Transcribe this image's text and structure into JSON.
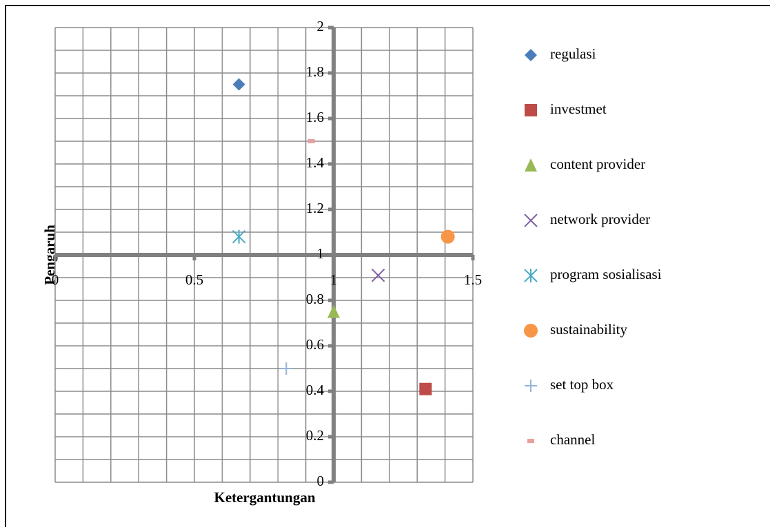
{
  "chart_data": {
    "type": "scatter",
    "xlabel": "Ketergantungan",
    "ylabel": "Pengaruh",
    "xlim": [
      0,
      1.5
    ],
    "ylim": [
      0,
      2
    ],
    "xticks": [
      0,
      0.5,
      1,
      1.5
    ],
    "yticks": [
      0,
      0.2,
      0.4,
      0.6,
      0.8,
      1,
      1.2,
      1.4,
      1.6,
      1.8,
      2
    ],
    "xminorticks": [
      0.1,
      0.2,
      0.3,
      0.4,
      0.6,
      0.7,
      0.8,
      0.9,
      1.1,
      1.2,
      1.3,
      1.4
    ],
    "yminorticks": [
      0.1,
      0.3,
      0.5,
      0.7,
      0.9,
      1.1,
      1.3,
      1.5,
      1.7,
      1.9
    ],
    "axis_cross": [
      1,
      1
    ],
    "grid": true,
    "legend": "right",
    "series": [
      {
        "name": "regulasi",
        "color": "#4a7ebb",
        "marker": "diamond",
        "x": [
          0.66
        ],
        "values": [
          1.75
        ]
      },
      {
        "name": "investmet",
        "color": "#be4b48",
        "marker": "square",
        "x": [
          1.33
        ],
        "values": [
          0.41
        ]
      },
      {
        "name": "content provider",
        "color": "#98b954",
        "marker": "triangle",
        "x": [
          1.0
        ],
        "values": [
          0.75
        ]
      },
      {
        "name": "network provider",
        "color": "#7d60a0",
        "marker": "x",
        "x": [
          1.16
        ],
        "values": [
          0.91
        ]
      },
      {
        "name": "program sosialisasi",
        "color": "#46aac5",
        "marker": "star",
        "x": [
          0.66
        ],
        "values": [
          1.08
        ]
      },
      {
        "name": "sustainability",
        "color": "#f79646",
        "marker": "circle",
        "x": [
          1.41
        ],
        "values": [
          1.08
        ]
      },
      {
        "name": "set top box",
        "color": "#95b3d7",
        "marker": "plus",
        "x": [
          0.83
        ],
        "values": [
          0.5
        ]
      },
      {
        "name": "channel",
        "color": "#e6a0a0",
        "marker": "dash",
        "x": [
          0.92
        ],
        "values": [
          1.5
        ]
      }
    ]
  }
}
